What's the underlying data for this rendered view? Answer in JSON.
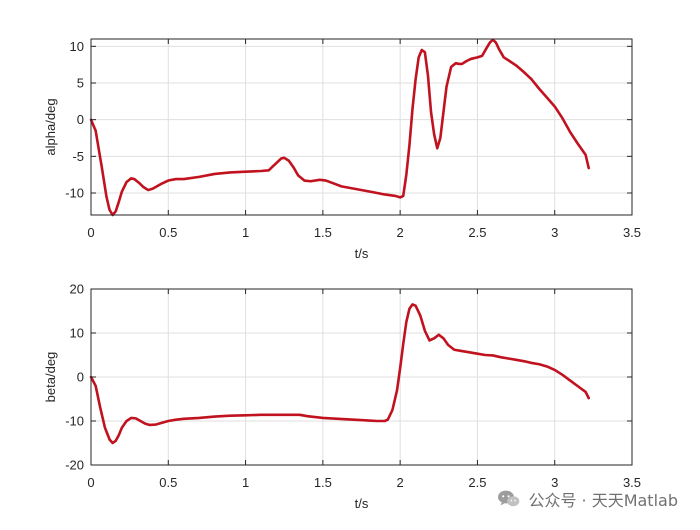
{
  "chart_data": [
    {
      "type": "line",
      "title": "",
      "xlabel": "t/s",
      "ylabel": "alpha/deg",
      "xlim": [
        0,
        3.5
      ],
      "ylim": [
        -13,
        11
      ],
      "xticks": [
        0,
        0.5,
        1,
        1.5,
        2,
        2.5,
        3,
        3.5
      ],
      "yticks": [
        -10,
        -5,
        0,
        5,
        10
      ],
      "grid": true,
      "series": [
        {
          "color": "#c1121f",
          "x": [
            0,
            0.03,
            0.07,
            0.1,
            0.12,
            0.14,
            0.16,
            0.18,
            0.2,
            0.23,
            0.26,
            0.28,
            0.31,
            0.34,
            0.37,
            0.4,
            0.45,
            0.5,
            0.55,
            0.6,
            0.7,
            0.8,
            0.9,
            1.0,
            1.1,
            1.15,
            1.18,
            1.2,
            1.23,
            1.25,
            1.28,
            1.31,
            1.34,
            1.38,
            1.42,
            1.48,
            1.52,
            1.57,
            1.62,
            1.7,
            1.8,
            1.9,
            1.97,
            2.0,
            2.02,
            2.04,
            2.06,
            2.08,
            2.1,
            2.12,
            2.14,
            2.16,
            2.18,
            2.2,
            2.22,
            2.24,
            2.26,
            2.28,
            2.3,
            2.33,
            2.36,
            2.38,
            2.4,
            2.43,
            2.46,
            2.5,
            2.53,
            2.56,
            2.58,
            2.6,
            2.62,
            2.64,
            2.67,
            2.7,
            2.75,
            2.8,
            2.85,
            2.9,
            2.95,
            3.0,
            3.05,
            3.1,
            3.15,
            3.2,
            3.22
          ],
          "y": [
            0,
            -1.5,
            -6.5,
            -10.5,
            -12.3,
            -13.0,
            -12.5,
            -11.2,
            -9.8,
            -8.5,
            -8.0,
            -8.1,
            -8.6,
            -9.2,
            -9.6,
            -9.4,
            -8.8,
            -8.3,
            -8.1,
            -8.1,
            -7.8,
            -7.4,
            -7.2,
            -7.1,
            -7.0,
            -6.9,
            -6.3,
            -5.9,
            -5.3,
            -5.2,
            -5.6,
            -6.5,
            -7.6,
            -8.3,
            -8.4,
            -8.2,
            -8.3,
            -8.7,
            -9.1,
            -9.4,
            -9.8,
            -10.2,
            -10.4,
            -10.6,
            -10.4,
            -7.5,
            -3.5,
            1.5,
            5.5,
            8.5,
            9.5,
            9.2,
            6.0,
            1.0,
            -2.0,
            -3.9,
            -2.5,
            1.0,
            4.5,
            7.2,
            7.7,
            7.6,
            7.6,
            8.0,
            8.3,
            8.5,
            8.7,
            9.8,
            10.5,
            10.9,
            10.5,
            9.6,
            8.5,
            8.1,
            7.4,
            6.5,
            5.5,
            4.2,
            3.0,
            1.8,
            0.2,
            -1.7,
            -3.3,
            -4.8,
            -6.6
          ]
        }
      ]
    },
    {
      "type": "line",
      "title": "",
      "xlabel": "t/s",
      "ylabel": "beta/deg",
      "xlim": [
        0,
        3.5
      ],
      "ylim": [
        -20,
        20
      ],
      "xticks": [
        0,
        0.5,
        1,
        1.5,
        2,
        2.5,
        3,
        3.5
      ],
      "yticks": [
        -20,
        -10,
        0,
        10,
        20
      ],
      "grid": true,
      "series": [
        {
          "color": "#c1121f",
          "x": [
            0,
            0.03,
            0.06,
            0.09,
            0.12,
            0.14,
            0.16,
            0.18,
            0.2,
            0.23,
            0.26,
            0.29,
            0.32,
            0.35,
            0.38,
            0.42,
            0.46,
            0.5,
            0.55,
            0.6,
            0.7,
            0.8,
            0.9,
            1.0,
            1.1,
            1.2,
            1.3,
            1.35,
            1.4,
            1.5,
            1.6,
            1.7,
            1.8,
            1.85,
            1.9,
            1.92,
            1.95,
            1.98,
            2.0,
            2.02,
            2.04,
            2.06,
            2.08,
            2.1,
            2.13,
            2.16,
            2.19,
            2.22,
            2.25,
            2.28,
            2.31,
            2.35,
            2.4,
            2.5,
            2.55,
            2.6,
            2.65,
            2.7,
            2.75,
            2.8,
            2.85,
            2.9,
            2.95,
            3.0,
            3.05,
            3.1,
            3.15,
            3.2,
            3.22
          ],
          "y": [
            0,
            -2.0,
            -7.0,
            -11.5,
            -14.2,
            -15.0,
            -14.5,
            -13.2,
            -11.5,
            -10.0,
            -9.3,
            -9.4,
            -10.0,
            -10.6,
            -10.9,
            -10.8,
            -10.4,
            -10.0,
            -9.7,
            -9.5,
            -9.3,
            -9.0,
            -8.8,
            -8.7,
            -8.6,
            -8.6,
            -8.6,
            -8.6,
            -8.9,
            -9.3,
            -9.5,
            -9.7,
            -9.9,
            -10.0,
            -10.0,
            -9.7,
            -7.5,
            -3.0,
            2.0,
            7.5,
            12.5,
            15.5,
            16.5,
            16.2,
            14.0,
            10.5,
            8.3,
            8.8,
            9.6,
            8.8,
            7.3,
            6.2,
            5.9,
            5.3,
            5.0,
            4.9,
            4.5,
            4.2,
            3.9,
            3.6,
            3.2,
            2.9,
            2.4,
            1.6,
            0.5,
            -0.8,
            -2.1,
            -3.4,
            -4.8
          ]
        }
      ]
    }
  ],
  "watermark": {
    "text": "公众号 · 天天Matlab",
    "icon": "wechat-icon",
    "color": "#5a5a5a"
  }
}
